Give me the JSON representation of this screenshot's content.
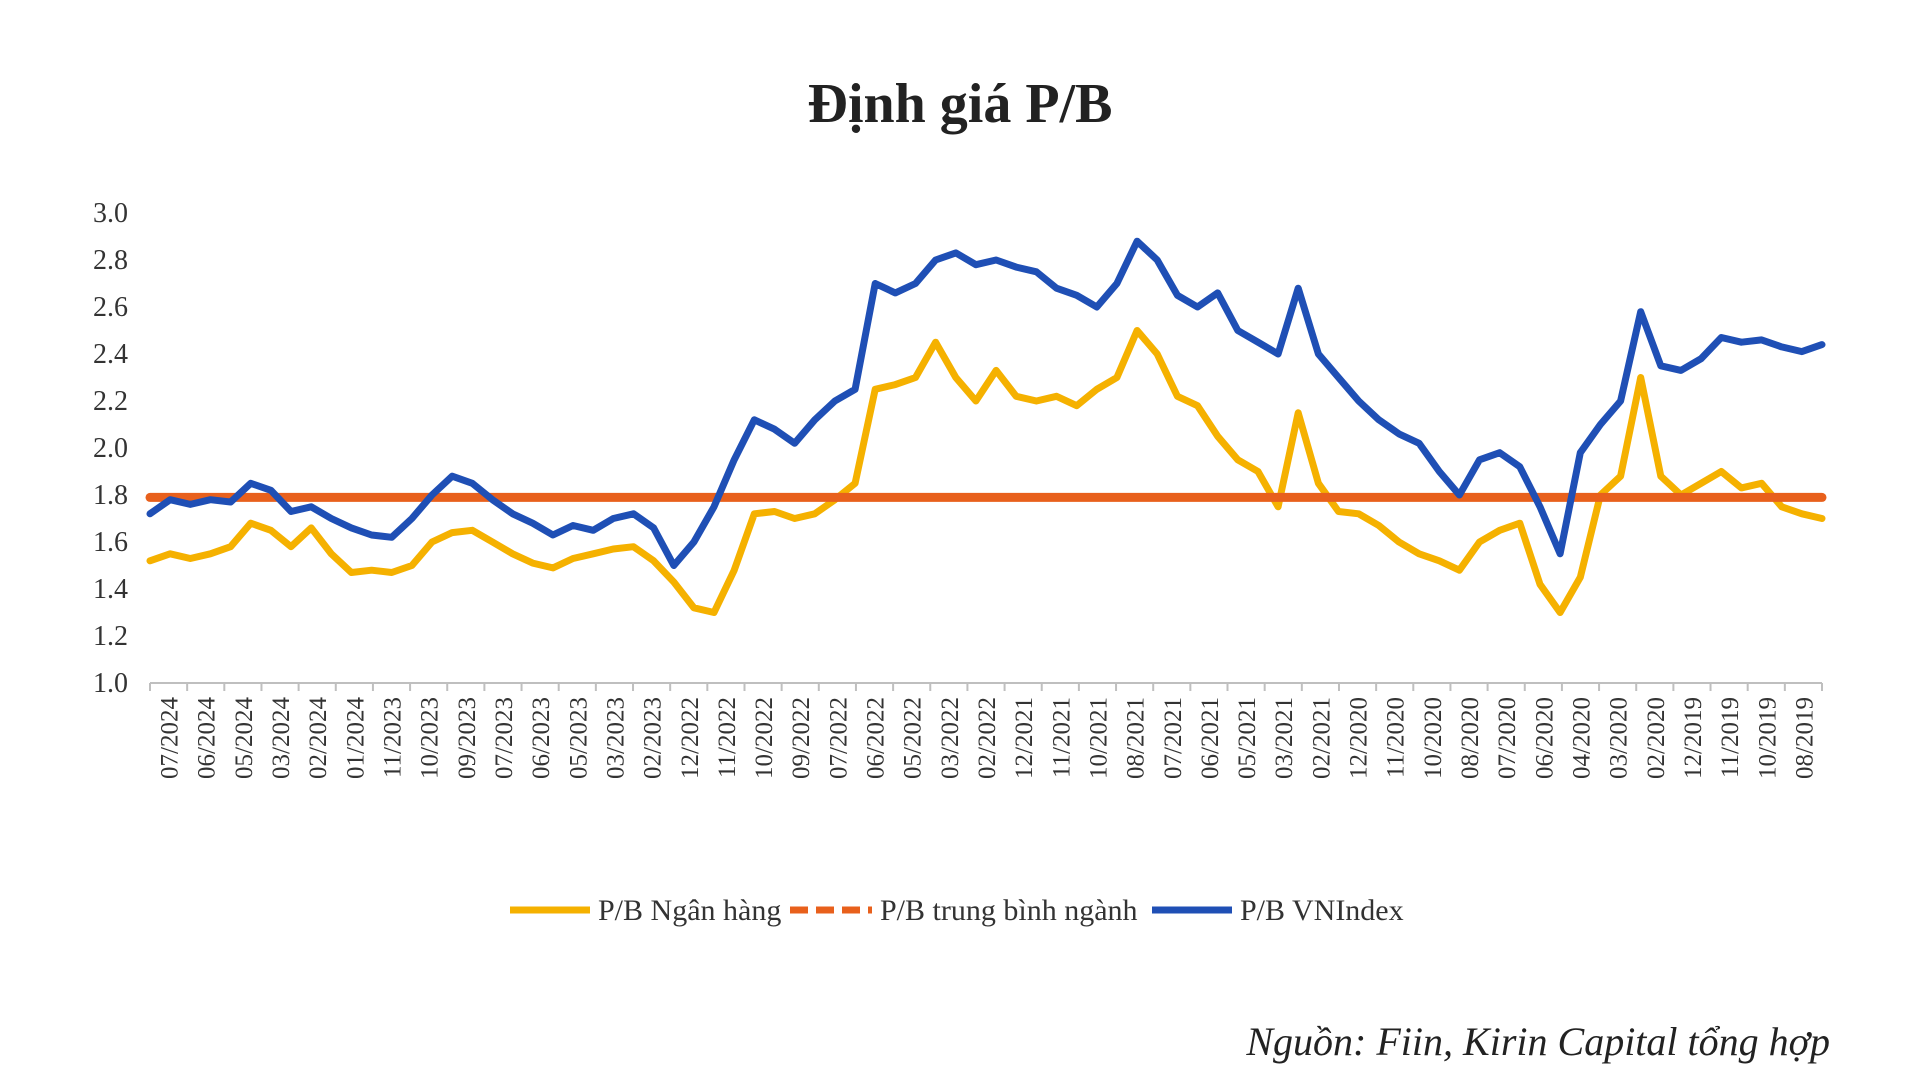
{
  "chart_data": {
    "type": "line",
    "title": "Định giá P/B",
    "xlabel": "",
    "ylabel": "",
    "ylim": [
      1.0,
      3.0
    ],
    "y_ticks": [
      "3.0",
      "2.8",
      "2.6",
      "2.4",
      "2.2",
      "2.0",
      "1.8",
      "1.6",
      "1.4",
      "1.2",
      "1.0"
    ],
    "x_labels": [
      "07/2024",
      "06/2024",
      "05/2024",
      "03/2024",
      "02/2024",
      "01/2024",
      "11/2023",
      "10/2023",
      "09/2023",
      "07/2023",
      "06/2023",
      "05/2023",
      "03/2023",
      "02/2023",
      "12/2022",
      "11/2022",
      "10/2022",
      "09/2022",
      "07/2022",
      "06/2022",
      "05/2022",
      "03/2022",
      "02/2022",
      "12/2021",
      "11/2021",
      "10/2021",
      "08/2021",
      "07/2021",
      "06/2021",
      "05/2021",
      "03/2021",
      "02/2021",
      "12/2020",
      "11/2020",
      "10/2020",
      "08/2020",
      "07/2020",
      "06/2020",
      "04/2020",
      "03/2020",
      "02/2020",
      "12/2019",
      "11/2019",
      "10/2019",
      "08/2019"
    ],
    "legend_position": "bottom",
    "series": [
      {
        "name": "P/B Ngân hàng",
        "color": "#F5B100",
        "style": "solid",
        "values": [
          1.52,
          1.55,
          1.53,
          1.55,
          1.58,
          1.68,
          1.65,
          1.58,
          1.66,
          1.55,
          1.47,
          1.48,
          1.47,
          1.5,
          1.6,
          1.64,
          1.65,
          1.6,
          1.55,
          1.51,
          1.49,
          1.53,
          1.55,
          1.57,
          1.58,
          1.52,
          1.43,
          1.32,
          1.3,
          1.48,
          1.72,
          1.73,
          1.7,
          1.72,
          1.78,
          1.85,
          2.25,
          2.27,
          2.3,
          2.45,
          2.3,
          2.2,
          2.33,
          2.22,
          2.2,
          2.22,
          2.18,
          2.25,
          2.3,
          2.5,
          2.4,
          2.22,
          2.18,
          2.05,
          1.95,
          1.9,
          1.75,
          2.15,
          1.85,
          1.73,
          1.72,
          1.67,
          1.6,
          1.55,
          1.52,
          1.48,
          1.6,
          1.65,
          1.68,
          1.42,
          1.3,
          1.45,
          1.8,
          1.88,
          2.3,
          1.88,
          1.8,
          1.85,
          1.9,
          1.83,
          1.85,
          1.75,
          1.72,
          1.7
        ]
      },
      {
        "name": "P/B trung bình ngành",
        "color": "#E8601C",
        "style": "dashed",
        "values": [
          1.79,
          1.79,
          1.79,
          1.79,
          1.79,
          1.79,
          1.79,
          1.79,
          1.79,
          1.79,
          1.79,
          1.79,
          1.79,
          1.79,
          1.79,
          1.79,
          1.79,
          1.79,
          1.79,
          1.79,
          1.79,
          1.79,
          1.79,
          1.79,
          1.79,
          1.79,
          1.79,
          1.79,
          1.79,
          1.79,
          1.79,
          1.79,
          1.79,
          1.79,
          1.79,
          1.79,
          1.79,
          1.79,
          1.79,
          1.79,
          1.79,
          1.79,
          1.79,
          1.79,
          1.79,
          1.79,
          1.79,
          1.79,
          1.79,
          1.79,
          1.79,
          1.79,
          1.79,
          1.79,
          1.79,
          1.79,
          1.79,
          1.79,
          1.79,
          1.79,
          1.79,
          1.79,
          1.79,
          1.79,
          1.79,
          1.79,
          1.79,
          1.79,
          1.79,
          1.79,
          1.79,
          1.79,
          1.79,
          1.79,
          1.79,
          1.79,
          1.79,
          1.79,
          1.79,
          1.79,
          1.79,
          1.79,
          1.79,
          1.79
        ]
      },
      {
        "name": "P/B VNIndex",
        "color": "#1F4FB5",
        "style": "solid",
        "values": [
          1.72,
          1.78,
          1.76,
          1.78,
          1.77,
          1.85,
          1.82,
          1.73,
          1.75,
          1.7,
          1.66,
          1.63,
          1.62,
          1.7,
          1.8,
          1.88,
          1.85,
          1.78,
          1.72,
          1.68,
          1.63,
          1.67,
          1.65,
          1.7,
          1.72,
          1.66,
          1.5,
          1.6,
          1.75,
          1.95,
          2.12,
          2.08,
          2.02,
          2.12,
          2.2,
          2.25,
          2.7,
          2.66,
          2.7,
          2.8,
          2.83,
          2.78,
          2.8,
          2.77,
          2.75,
          2.68,
          2.65,
          2.6,
          2.7,
          2.88,
          2.8,
          2.65,
          2.6,
          2.66,
          2.5,
          2.45,
          2.4,
          2.68,
          2.4,
          2.3,
          2.2,
          2.12,
          2.06,
          2.02,
          1.9,
          1.8,
          1.95,
          1.98,
          1.92,
          1.75,
          1.55,
          1.98,
          2.1,
          2.2,
          2.58,
          2.35,
          2.33,
          2.38,
          2.47,
          2.45,
          2.46,
          2.43,
          2.41,
          2.44
        ]
      }
    ]
  },
  "source_note": "Nguồn: Fiin, Kirin Capital tổng hợp"
}
